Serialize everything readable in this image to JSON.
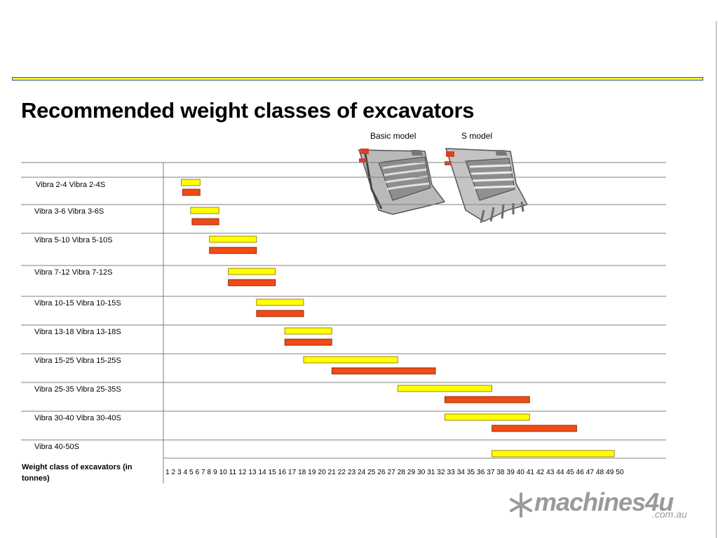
{
  "title": "Recommended weight classes of excavators",
  "legend": {
    "basic_label": "Basic model",
    "s_label": "S model"
  },
  "x_axis_label": "Weight class of excavators (in tonnes)",
  "tick_text": "1 2 3 4 5 6 7 8 9 10 11 12 13 14 15 16 17 18 19 20 21 22 23 24 25 26 27 28 29 30 31 32 33 34 35 36 37 38 39 40 41 42 43 44 45 46 47 48 49 50",
  "logo": {
    "name": "machines4u",
    "domain": ".com.au",
    "icon": "snowflake-icon"
  },
  "colors": {
    "basic": "#ffff00",
    "s_model": "#f04a16",
    "bar_border": "#8a6a00",
    "grid": "#7f7f7f",
    "rule_fill": "#f7f12a",
    "rule_border": "#2f5fb0"
  },
  "chart_data": {
    "type": "bar",
    "orientation": "horizontal-range",
    "title": "Recommended weight classes of excavators",
    "xlabel": "Weight class of excavators (in tonnes)",
    "xlim": [
      1,
      50
    ],
    "rows": [
      {
        "label": "Vibra 2-4 Vibra 2-4S",
        "basic": [
          2,
          4
        ],
        "s": [
          2,
          4
        ]
      },
      {
        "label": "Vibra 3-6 Vibra 3-6S",
        "basic": [
          3,
          6
        ],
        "s": [
          3,
          6
        ]
      },
      {
        "label": "Vibra 5-10 Vibra 5-10S",
        "basic": [
          5,
          10
        ],
        "s": [
          5,
          10
        ]
      },
      {
        "label": "Vibra 7-12 Vibra 7-12S",
        "basic": [
          7,
          12
        ],
        "s": [
          7,
          12
        ]
      },
      {
        "label": "Vibra 10-15 Vibra 10-15S",
        "basic": [
          10,
          15
        ],
        "s": [
          10,
          15
        ]
      },
      {
        "label": "Vibra 13-18 Vibra 13-18S",
        "basic": [
          13,
          18
        ],
        "s": [
          13,
          18
        ]
      },
      {
        "label": "Vibra 15-25 Vibra 15-25S",
        "basic": [
          15,
          25
        ],
        "s": [
          18,
          29
        ]
      },
      {
        "label": "Vibra 25-35 Vibra 25-35S",
        "basic": [
          25,
          35
        ],
        "s": [
          30,
          39
        ]
      },
      {
        "label": "Vibra 30-40 Vibra 30-40S",
        "basic": [
          30,
          39
        ],
        "s": [
          35,
          44
        ]
      },
      {
        "label": "Vibra 40-50S",
        "basic": [
          35,
          48
        ],
        "s": null
      }
    ]
  }
}
